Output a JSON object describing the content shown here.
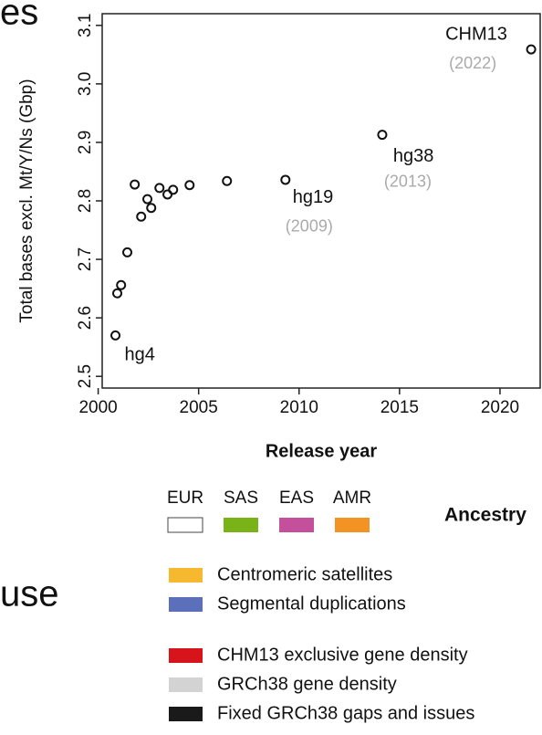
{
  "chart_data": {
    "type": "scatter",
    "side_texts": [
      "es",
      "use"
    ],
    "xlabel": "Release year",
    "ylabel": "Total bases excl. Mt/Y/Ns (Gbp)",
    "x": [
      2000.86,
      2000.95,
      2001.14,
      2001.45,
      2001.82,
      2002.14,
      2002.45,
      2002.64,
      2003.05,
      2003.45,
      2003.73,
      2004.55,
      2006.41,
      2009.32,
      2014.14,
      2021.55
    ],
    "values": [
      2.57,
      2.642,
      2.656,
      2.712,
      2.828,
      2.773,
      2.803,
      2.788,
      2.822,
      2.811,
      2.819,
      2.827,
      2.834,
      2.836,
      2.913,
      3.059
    ],
    "xlim": [
      2000.2,
      2022
    ],
    "ylim": [
      2.48,
      3.12
    ],
    "xticks": [
      2000,
      2005,
      2010,
      2015,
      2020
    ],
    "yticks": [
      2.5,
      2.6,
      2.7,
      2.8,
      2.9,
      {
        "value": 3,
        "label": "3.0"
      },
      3.1
    ],
    "annotations": [
      {
        "text": "hg4"
      },
      {
        "text": "hg19",
        "sub": "(2009)"
      },
      {
        "text": "hg38",
        "sub": "(2013)"
      },
      {
        "text": "CHM13",
        "sub": "(2022)"
      }
    ],
    "ancestry": {
      "title": "Ancestry",
      "items": [
        {
          "name": "EUR",
          "color": "#ffffff"
        },
        {
          "name": "SAS",
          "color": "#7ab317"
        },
        {
          "name": "EAS",
          "color": "#c4509b"
        },
        {
          "name": "AMR",
          "color": "#f39324"
        }
      ]
    },
    "legend": [
      {
        "name": "Centromeric satellites",
        "color": "#f5b82e"
      },
      {
        "name": "Segmental duplications",
        "color": "#5b6fba"
      },
      {
        "name": "CHM13 exclusive gene density",
        "color": "#d7141b"
      },
      {
        "name": "GRCh38 gene density",
        "color": "#d3d3d3"
      },
      {
        "name": "Fixed GRCh38 gaps and issues",
        "color": "#1a1a1a"
      }
    ]
  }
}
